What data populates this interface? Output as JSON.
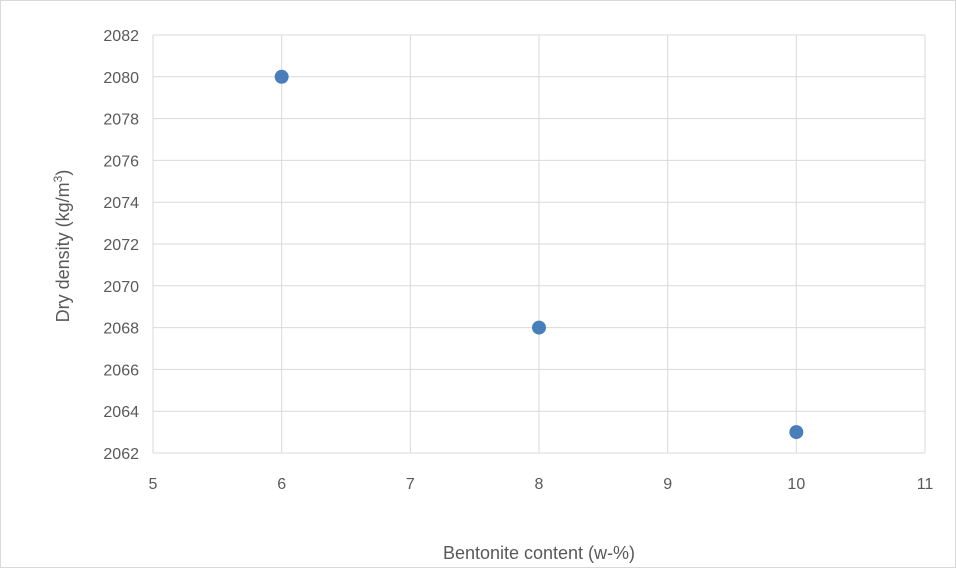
{
  "chart_data": {
    "type": "scatter",
    "title": "",
    "xlabel": "Bentonite content (w-%)",
    "ylabel_main": "Dry density (kg/m",
    "ylabel_sup": "3",
    "ylabel_close": ")",
    "xlim": [
      5,
      11
    ],
    "ylim": [
      2062,
      2082
    ],
    "xticks": [
      5,
      6,
      7,
      8,
      9,
      10,
      11
    ],
    "yticks": [
      2062,
      2064,
      2066,
      2068,
      2070,
      2072,
      2074,
      2076,
      2078,
      2080,
      2082
    ],
    "grid": true,
    "legend": "none",
    "marker_color": "#4a7ebb",
    "grid_color": "#d9d9d9",
    "series": [
      {
        "x": [
          6,
          8,
          10
        ],
        "y": [
          2080,
          2068,
          2063
        ]
      }
    ]
  }
}
